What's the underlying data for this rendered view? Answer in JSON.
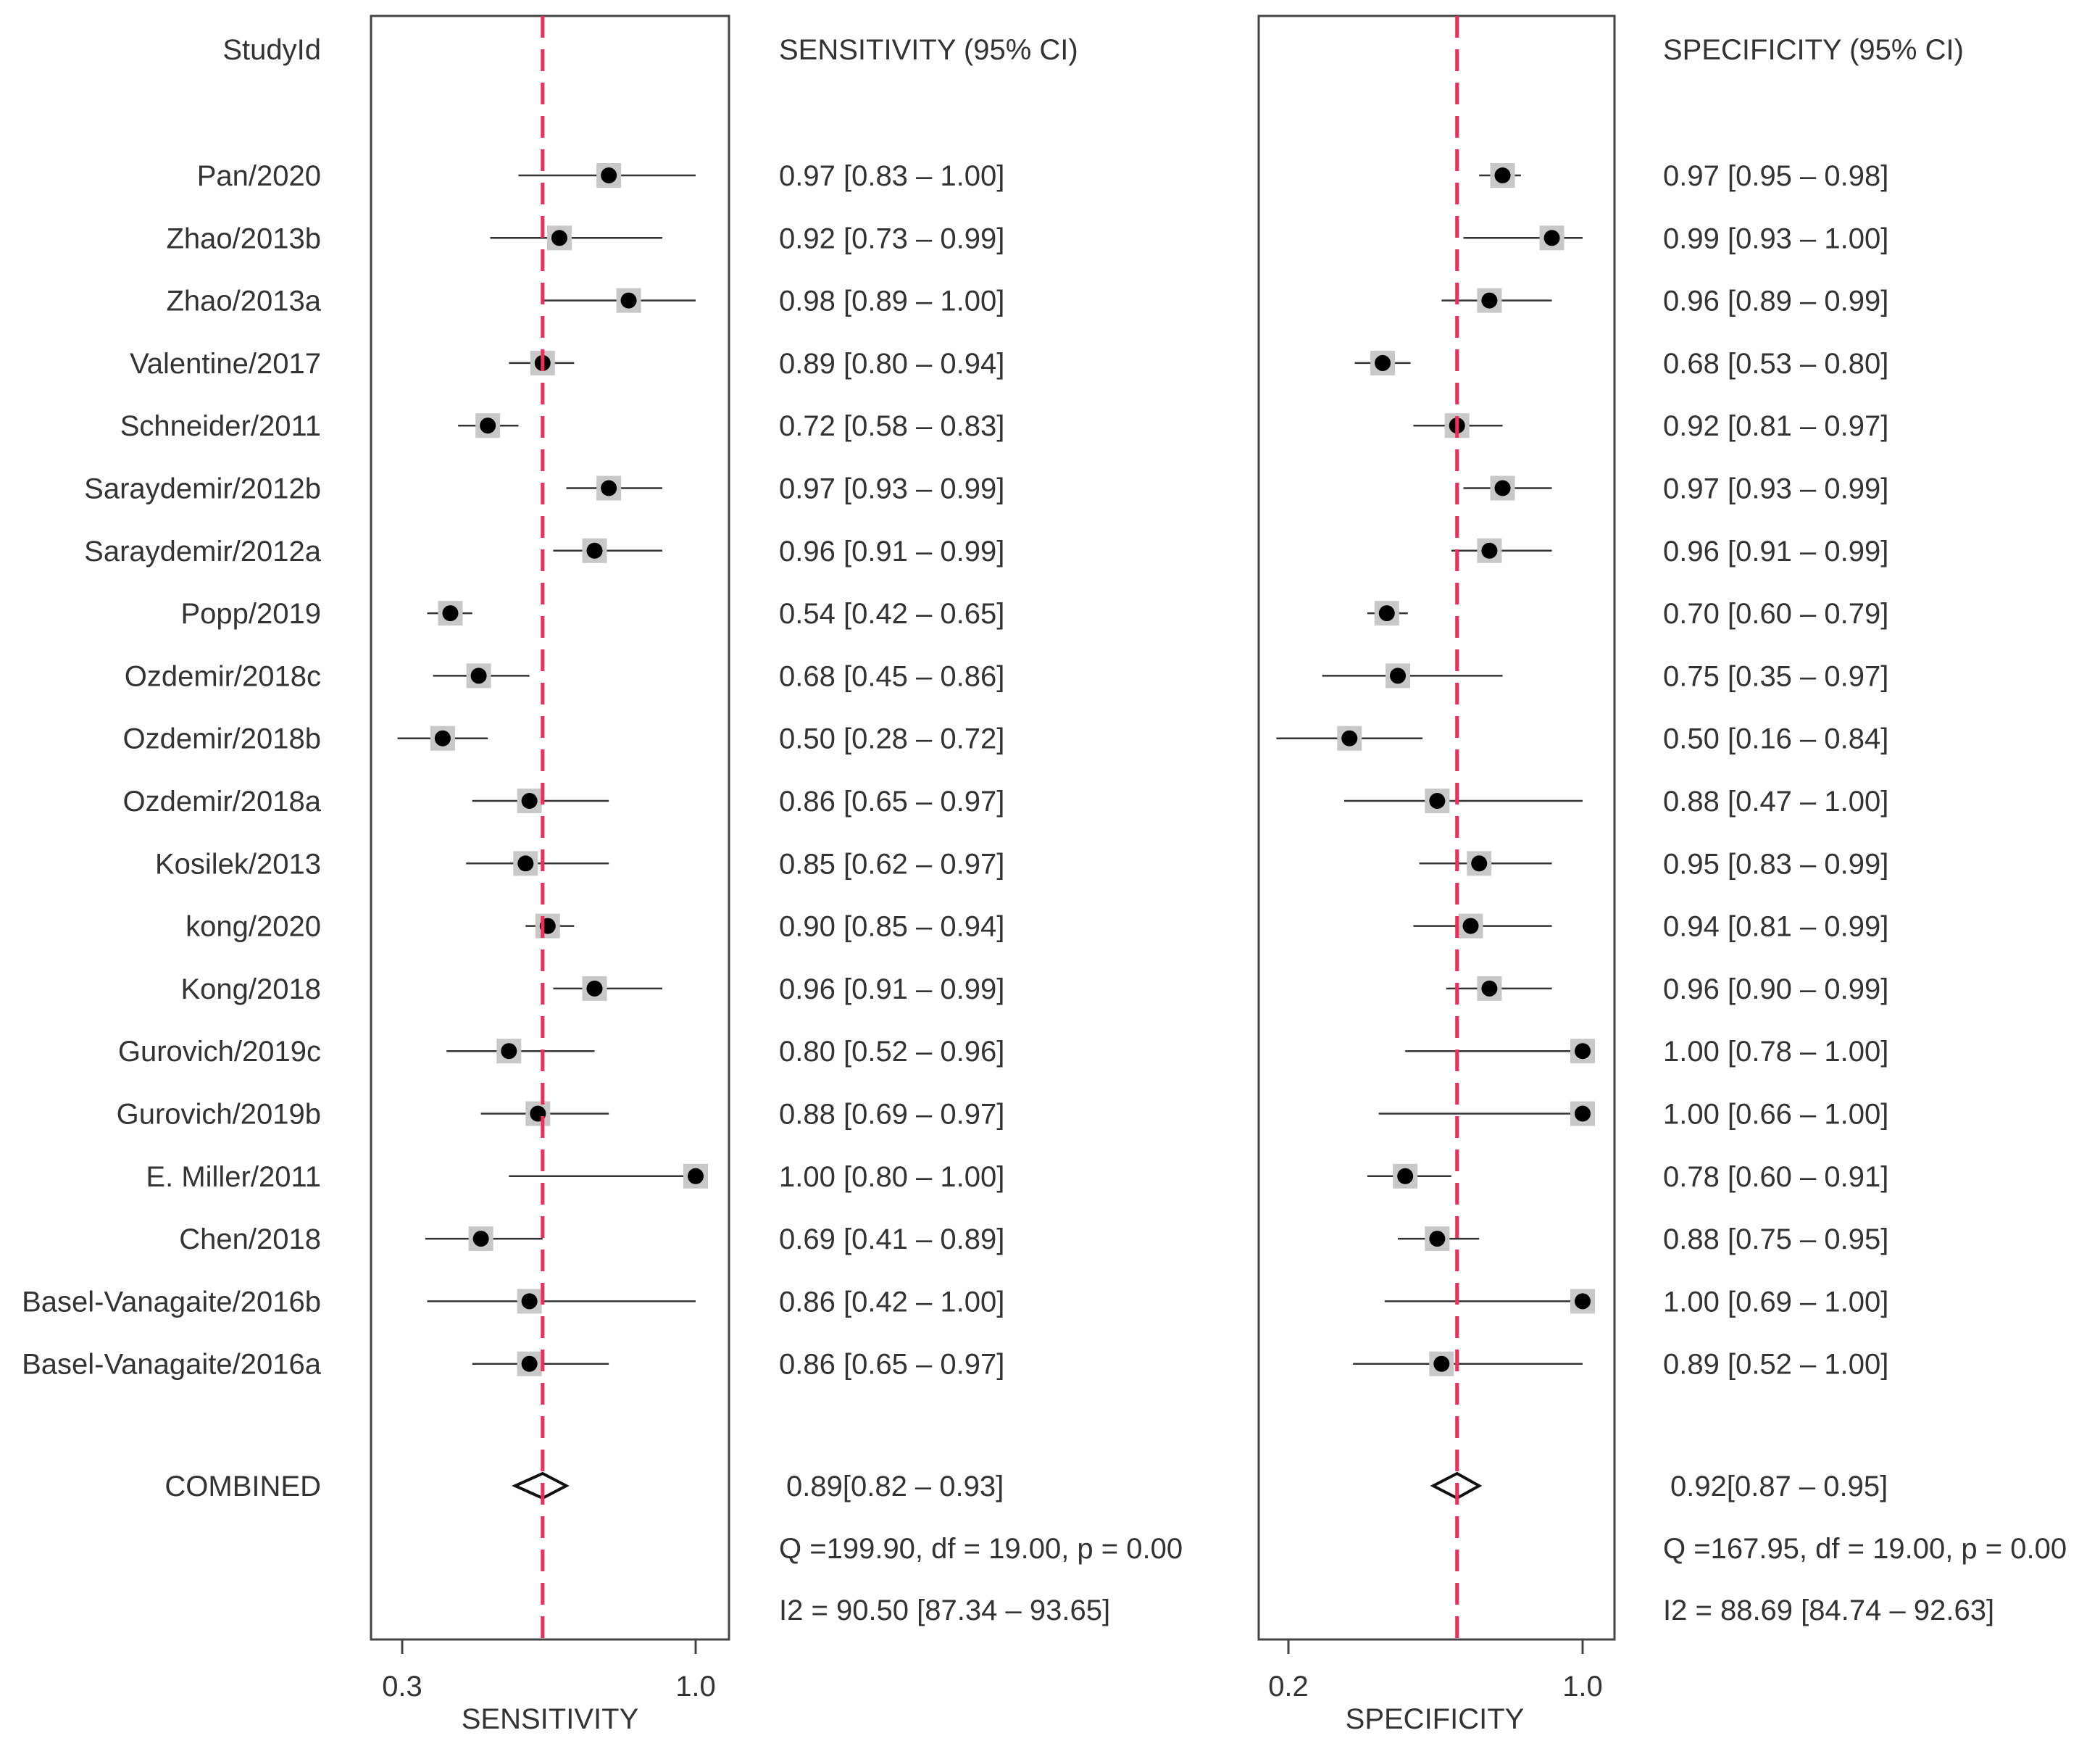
{
  "header": {
    "study_col": "StudyId",
    "sens_ci_col": "SENSITIVITY (95% CI)",
    "spec_ci_col": "SPECIFICITY (95% CI)"
  },
  "chart_data": {
    "type": "forest",
    "studies": [
      {
        "name": "Pan/2020",
        "sens": 0.97,
        "sens_lo": 0.83,
        "sens_hi": 1.0,
        "sens_text": "0.97 [0.83 – 1.00]",
        "spec": 0.97,
        "spec_lo": 0.95,
        "spec_hi": 0.98,
        "spec_text": "0.97 [0.95 – 0.98]"
      },
      {
        "name": "Zhao/2013b",
        "sens": 0.92,
        "sens_lo": 0.73,
        "sens_hi": 0.99,
        "sens_text": "0.92 [0.73 – 0.99]",
        "spec": 0.99,
        "spec_lo": 0.93,
        "spec_hi": 1.0,
        "spec_text": "0.99 [0.93 – 1.00]"
      },
      {
        "name": "Zhao/2013a",
        "sens": 0.98,
        "sens_lo": 0.89,
        "sens_hi": 1.0,
        "sens_text": "0.98 [0.89 – 1.00]",
        "spec": 0.96,
        "spec_lo": 0.89,
        "spec_hi": 0.99,
        "spec_text": "0.96 [0.89 – 0.99]"
      },
      {
        "name": "Valentine/2017",
        "sens": 0.89,
        "sens_lo": 0.8,
        "sens_hi": 0.94,
        "sens_text": "0.89 [0.80 – 0.94]",
        "spec": 0.68,
        "spec_lo": 0.53,
        "spec_hi": 0.8,
        "spec_text": "0.68 [0.53 – 0.80]"
      },
      {
        "name": "Schneider/2011",
        "sens": 0.72,
        "sens_lo": 0.58,
        "sens_hi": 0.83,
        "sens_text": "0.72 [0.58 – 0.83]",
        "spec": 0.92,
        "spec_lo": 0.81,
        "spec_hi": 0.97,
        "spec_text": "0.92 [0.81 – 0.97]"
      },
      {
        "name": "Saraydemir/2012b",
        "sens": 0.97,
        "sens_lo": 0.93,
        "sens_hi": 0.99,
        "sens_text": "0.97 [0.93 – 0.99]",
        "spec": 0.97,
        "spec_lo": 0.93,
        "spec_hi": 0.99,
        "spec_text": "0.97 [0.93 – 0.99]"
      },
      {
        "name": "Saraydemir/2012a",
        "sens": 0.96,
        "sens_lo": 0.91,
        "sens_hi": 0.99,
        "sens_text": "0.96 [0.91 – 0.99]",
        "spec": 0.96,
        "spec_lo": 0.91,
        "spec_hi": 0.99,
        "spec_text": "0.96 [0.91 – 0.99]"
      },
      {
        "name": "Popp/2019",
        "sens": 0.54,
        "sens_lo": 0.42,
        "sens_hi": 0.65,
        "sens_text": "0.54 [0.42 – 0.65]",
        "spec": 0.7,
        "spec_lo": 0.6,
        "spec_hi": 0.79,
        "spec_text": "0.70 [0.60 – 0.79]"
      },
      {
        "name": "Ozdemir/2018c",
        "sens": 0.68,
        "sens_lo": 0.45,
        "sens_hi": 0.86,
        "sens_text": "0.68 [0.45 – 0.86]",
        "spec": 0.75,
        "spec_lo": 0.35,
        "spec_hi": 0.97,
        "spec_text": "0.75 [0.35 – 0.97]"
      },
      {
        "name": "Ozdemir/2018b",
        "sens": 0.5,
        "sens_lo": 0.28,
        "sens_hi": 0.72,
        "sens_text": "0.50 [0.28 – 0.72]",
        "spec": 0.5,
        "spec_lo": 0.16,
        "spec_hi": 0.84,
        "spec_text": "0.50 [0.16 – 0.84]"
      },
      {
        "name": "Ozdemir/2018a",
        "sens": 0.86,
        "sens_lo": 0.65,
        "sens_hi": 0.97,
        "sens_text": "0.86 [0.65 – 0.97]",
        "spec": 0.88,
        "spec_lo": 0.47,
        "spec_hi": 1.0,
        "spec_text": "0.88 [0.47 – 1.00]"
      },
      {
        "name": "Kosilek/2013",
        "sens": 0.85,
        "sens_lo": 0.62,
        "sens_hi": 0.97,
        "sens_text": "0.85 [0.62 – 0.97]",
        "spec": 0.95,
        "spec_lo": 0.83,
        "spec_hi": 0.99,
        "spec_text": "0.95 [0.83 – 0.99]"
      },
      {
        "name": "kong/2020",
        "sens": 0.9,
        "sens_lo": 0.85,
        "sens_hi": 0.94,
        "sens_text": "0.90 [0.85 – 0.94]",
        "spec": 0.94,
        "spec_lo": 0.81,
        "spec_hi": 0.99,
        "spec_text": "0.94 [0.81 – 0.99]"
      },
      {
        "name": "Kong/2018",
        "sens": 0.96,
        "sens_lo": 0.91,
        "sens_hi": 0.99,
        "sens_text": "0.96 [0.91 – 0.99]",
        "spec": 0.96,
        "spec_lo": 0.9,
        "spec_hi": 0.99,
        "spec_text": "0.96 [0.90 – 0.99]"
      },
      {
        "name": "Gurovich/2019c",
        "sens": 0.8,
        "sens_lo": 0.52,
        "sens_hi": 0.96,
        "sens_text": "0.80 [0.52 – 0.96]",
        "spec": 1.0,
        "spec_lo": 0.78,
        "spec_hi": 1.0,
        "spec_text": "1.00 [0.78 – 1.00]"
      },
      {
        "name": "Gurovich/2019b",
        "sens": 0.88,
        "sens_lo": 0.69,
        "sens_hi": 0.97,
        "sens_text": "0.88 [0.69 – 0.97]",
        "spec": 1.0,
        "spec_lo": 0.66,
        "spec_hi": 1.0,
        "spec_text": "1.00 [0.66 – 1.00]"
      },
      {
        "name": "E. Miller/2011",
        "sens": 1.0,
        "sens_lo": 0.8,
        "sens_hi": 1.0,
        "sens_text": "1.00 [0.80 – 1.00]",
        "spec": 0.78,
        "spec_lo": 0.6,
        "spec_hi": 0.91,
        "spec_text": "0.78 [0.60 – 0.91]"
      },
      {
        "name": "Chen/2018",
        "sens": 0.69,
        "sens_lo": 0.41,
        "sens_hi": 0.89,
        "sens_text": "0.69 [0.41 – 0.89]",
        "spec": 0.88,
        "spec_lo": 0.75,
        "spec_hi": 0.95,
        "spec_text": "0.88 [0.75 – 0.95]"
      },
      {
        "name": "Basel-Vanagaite/2016b",
        "sens": 0.86,
        "sens_lo": 0.42,
        "sens_hi": 1.0,
        "sens_text": "0.86 [0.42 – 1.00]",
        "spec": 1.0,
        "spec_lo": 0.69,
        "spec_hi": 1.0,
        "spec_text": "1.00 [0.69 – 1.00]"
      },
      {
        "name": "Basel-Vanagaite/2016a",
        "sens": 0.86,
        "sens_lo": 0.65,
        "sens_hi": 0.97,
        "sens_text": "0.86 [0.65 – 0.97]",
        "spec": 0.89,
        "spec_lo": 0.52,
        "spec_hi": 1.0,
        "spec_text": "0.89 [0.52 – 1.00]"
      }
    ],
    "combined": {
      "label": "COMBINED",
      "sens": 0.89,
      "sens_lo": 0.82,
      "sens_hi": 0.93,
      "sens_text": "0.89[0.82 – 0.93]",
      "spec": 0.92,
      "spec_lo": 0.87,
      "spec_hi": 0.95,
      "spec_text": "0.92[0.87 – 0.95]"
    },
    "heterogeneity": {
      "sens_q": "Q =199.90, df = 19.00, p =  0.00",
      "sens_i2": "I2 = 90.50 [87.34 – 93.65]",
      "spec_q": "Q =167.95, df = 19.00, p =  0.00",
      "spec_i2": "I2 = 88.69 [84.74 – 92.63]"
    },
    "sens_axis": {
      "label": "SENSITIVITY",
      "ticks": [
        0.3,
        1.0
      ],
      "tick_labels": [
        "0.3",
        "1.0"
      ],
      "xlim": [
        0.27,
        1.0
      ],
      "scale": "logit"
    },
    "spec_axis": {
      "label": "SPECIFICITY",
      "ticks": [
        0.2,
        1.0
      ],
      "tick_labels": [
        "0.2",
        "1.0"
      ],
      "xlim": [
        0.2,
        1.0
      ],
      "scale": "logit"
    },
    "colors": {
      "ref_line": "#e8315a",
      "marker": "#000000",
      "box": "#c8c8c8",
      "ci_line": "#333333"
    }
  }
}
